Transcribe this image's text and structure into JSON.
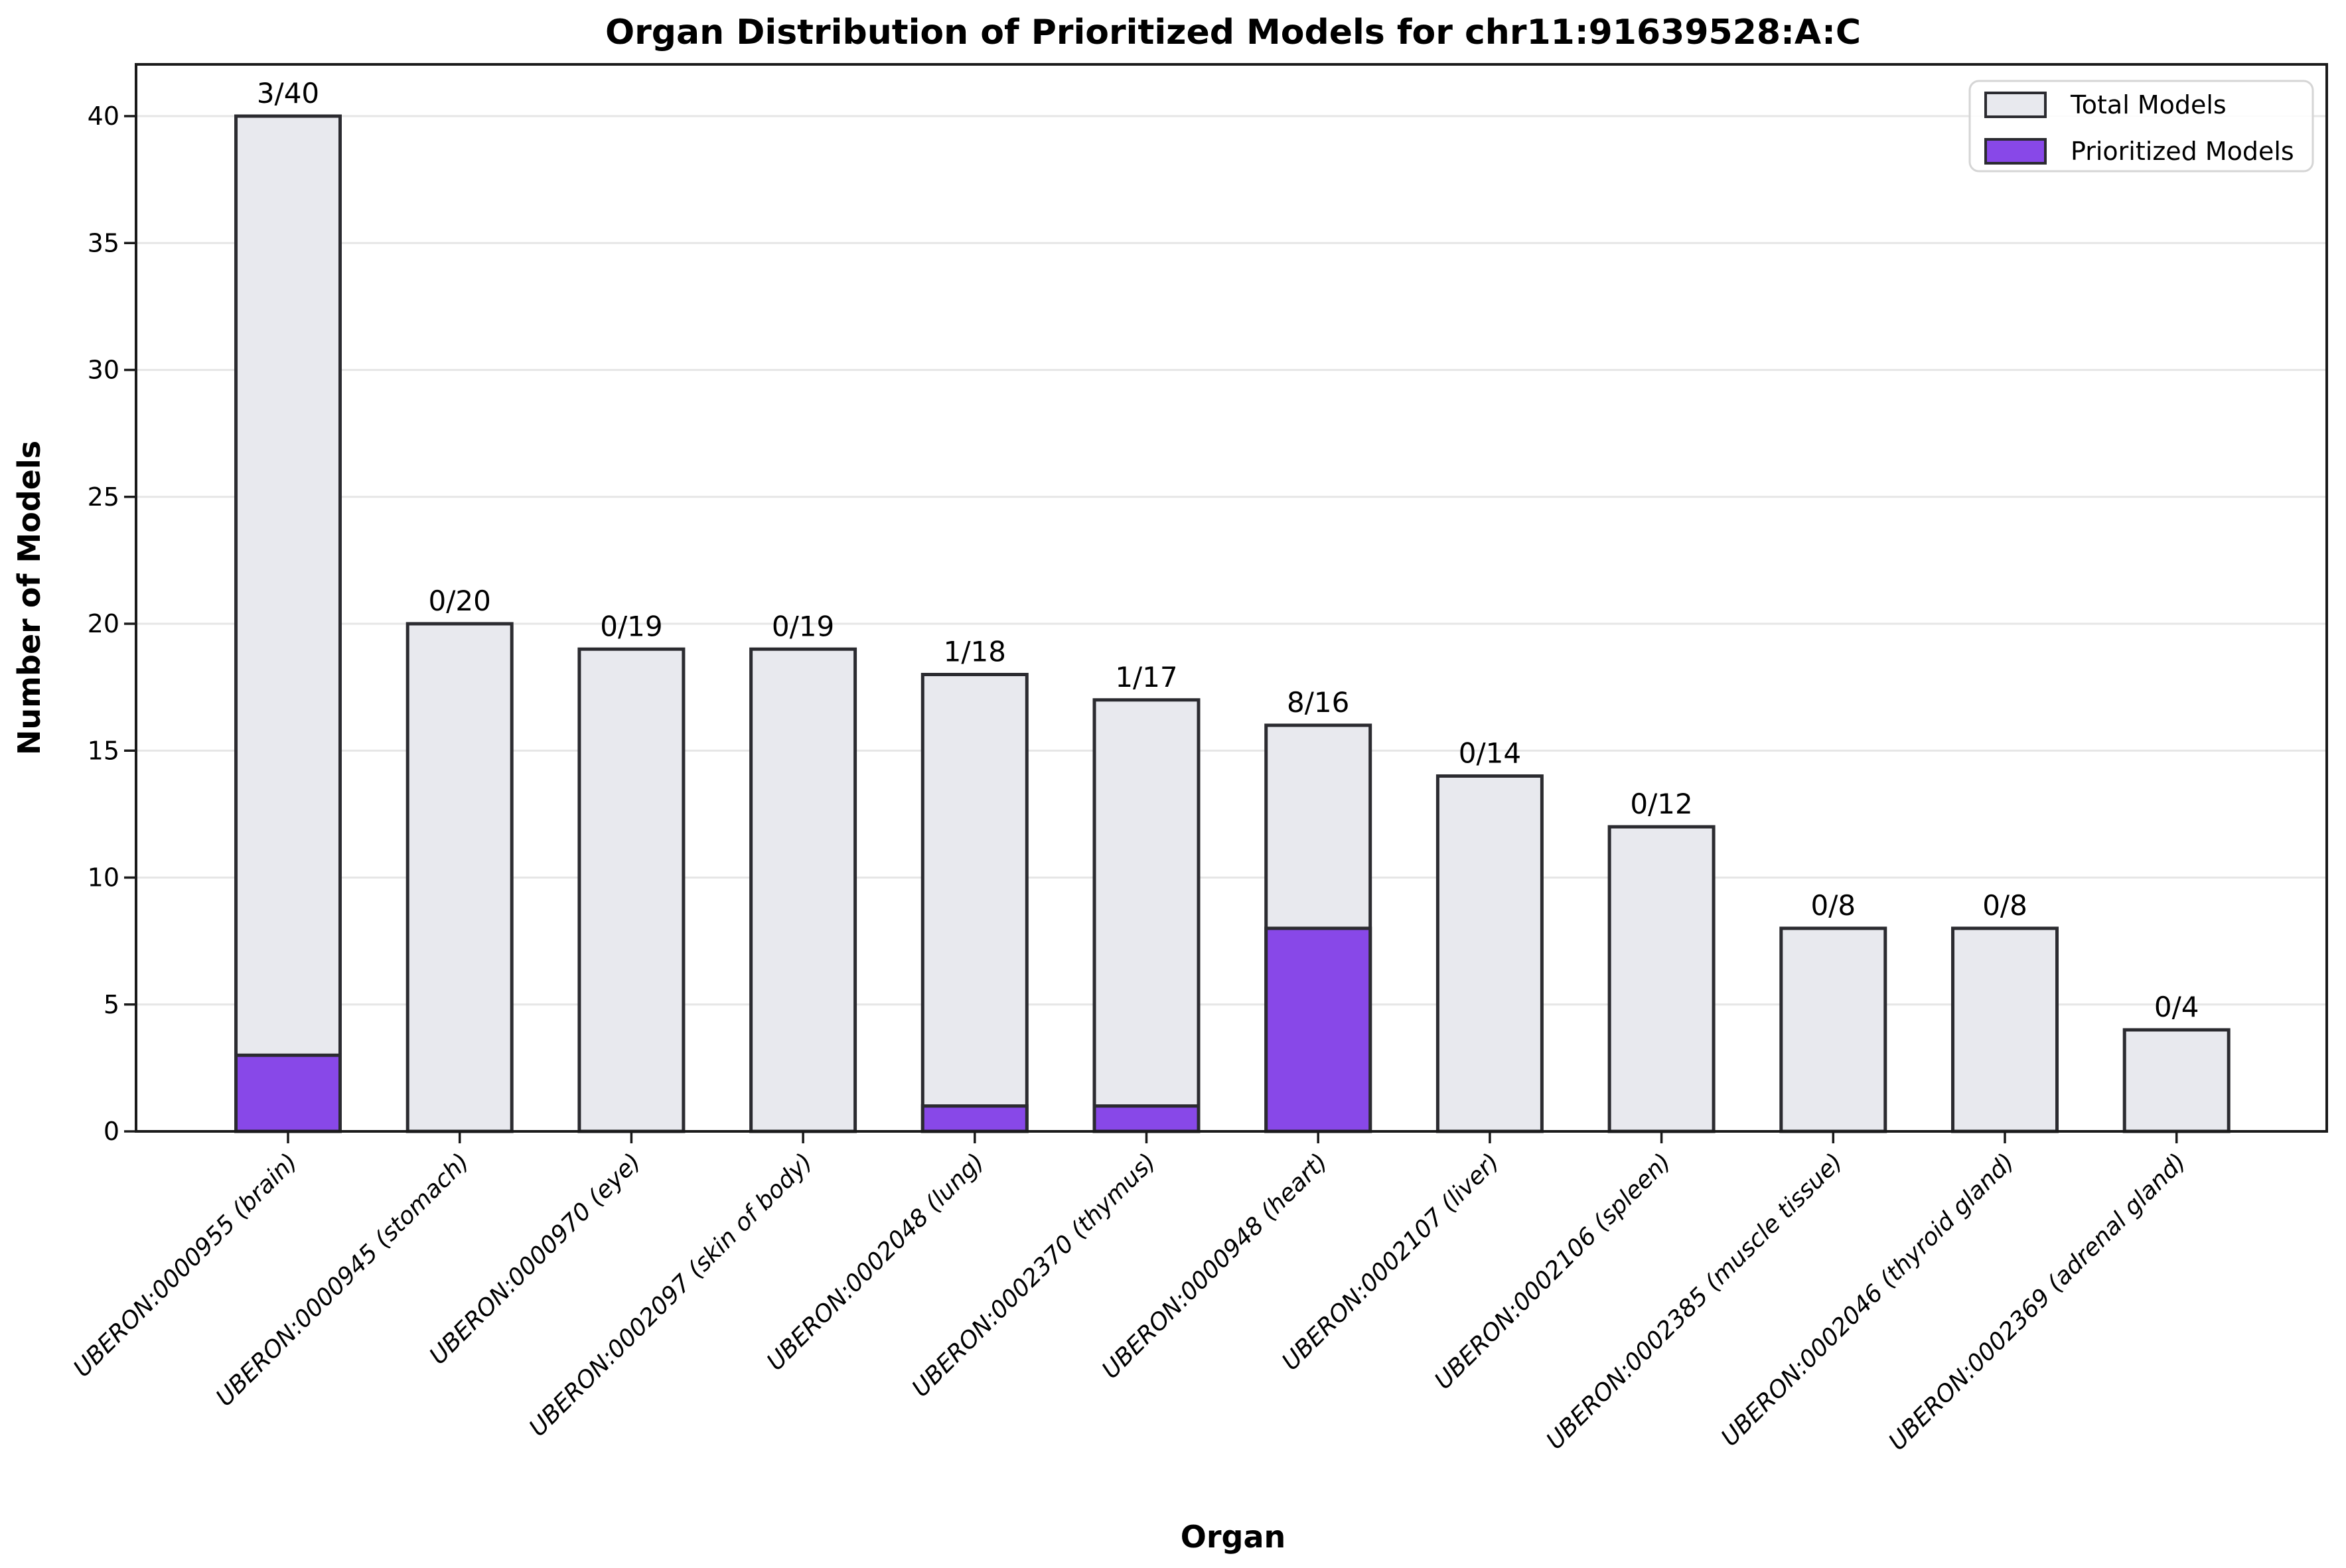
{
  "figure": {
    "background": "#ffffff"
  },
  "chart_data": {
    "type": "bar",
    "subtype": "overlay-stacked",
    "title": "Organ Distribution of Prioritized Models for chr11:91639528:A:C",
    "xlabel": "Organ",
    "ylabel": "Number of Models",
    "ylim": [
      0,
      42
    ],
    "yticks": [
      0,
      5,
      10,
      15,
      20,
      25,
      30,
      35,
      40
    ],
    "grid": "horizontal",
    "legend_position": "upper-right",
    "categories": [
      "UBERON:0000955 (brain)",
      "UBERON:0000945 (stomach)",
      "UBERON:0000970 (eye)",
      "UBERON:0002097 (skin of body)",
      "UBERON:0002048 (lung)",
      "UBERON:0002370 (thymus)",
      "UBERON:0000948 (heart)",
      "UBERON:0002107 (liver)",
      "UBERON:0002106 (spleen)",
      "UBERON:0002385 (muscle tissue)",
      "UBERON:0002046 (thyroid gland)",
      "UBERON:0002369 (adrenal gland)"
    ],
    "series": [
      {
        "name": "Total Models",
        "color": "#e8e9ee",
        "values": [
          40,
          20,
          19,
          19,
          18,
          17,
          16,
          14,
          12,
          8,
          8,
          4
        ]
      },
      {
        "name": "Prioritized Models",
        "color": "#8848e8",
        "values": [
          3,
          0,
          0,
          0,
          1,
          1,
          8,
          0,
          0,
          0,
          0,
          0
        ]
      }
    ],
    "bar_labels": [
      "3/40",
      "0/20",
      "0/19",
      "0/19",
      "1/18",
      "1/17",
      "8/16",
      "0/14",
      "0/12",
      "0/8",
      "0/8",
      "0/4"
    ],
    "colors": {
      "bar_edge": "#2b2b30",
      "grid": "#e6e6e6",
      "spine": "#1a1a1a",
      "tick": "#1a1a1a",
      "legend_border": "#d5d5d5",
      "legend_bg": "#ffffff",
      "text": "#000000"
    }
  }
}
